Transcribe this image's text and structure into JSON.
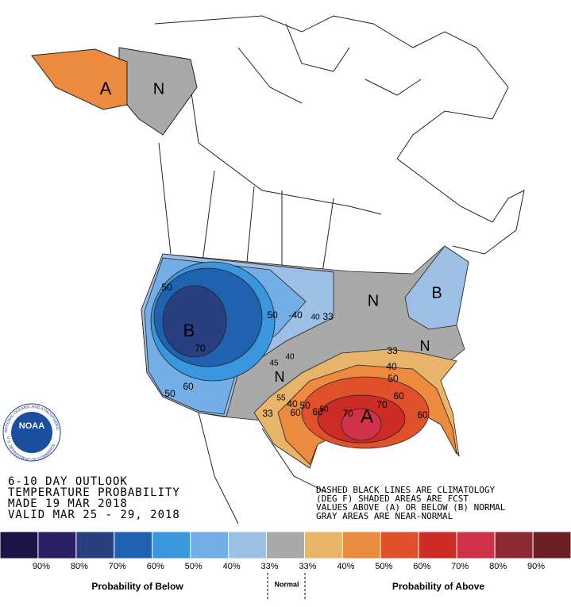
{
  "outlook": {
    "lines": [
      "6-10 DAY OUTLOOK",
      "TEMPERATURE PROBABILITY",
      "MADE  19 MAR 2018",
      "VALID  MAR 25 - 29, 2018"
    ],
    "notes": [
      "DASHED BLACK LINES ARE CLIMATOLOGY",
      "(DEG F) SHADED AREAS ARE FCST",
      "VALUES ABOVE (A) OR BELOW (B) NORMAL",
      "GRAY AREAS ARE NEAR-NORMAL"
    ]
  },
  "logo": {
    "name": "NOAA",
    "ring_top": "NATIONAL OCEANIC AND ATMOSPHERIC ADMINISTRATION",
    "ring_bottom": "U.S. DEPARTMENT OF COMMERCE"
  },
  "map_labels": [
    "A",
    "N",
    "B",
    "N",
    "B",
    "N",
    "N",
    "A",
    "50",
    "70",
    "60",
    "50",
    "50",
    "-40",
    "40",
    "33",
    "33",
    "40",
    "50",
    "60",
    "33",
    "40",
    "50",
    "60",
    "70",
    "70",
    "60",
    "45",
    "55",
    "40",
    "50",
    "60"
  ],
  "legend": {
    "swatches": [
      "#1c1446",
      "#2b1f66",
      "#2a3f7f",
      "#1f62b0",
      "#3a96dd",
      "#74aee6",
      "#9dbfe6",
      "#a9a9a9",
      "#e8b46a",
      "#ec8a40",
      "#e0502a",
      "#cc2b26",
      "#d0324a",
      "#8c2a33",
      "#6b1f24"
    ],
    "labels": [
      "90%",
      "80%",
      "70%",
      "60%",
      "50%",
      "40%",
      "33%",
      "33%",
      "40%",
      "50%",
      "60%",
      "70%",
      "80%",
      "90%"
    ],
    "below": "Probability of Below",
    "normal": "Normal",
    "above": "Probability of Above"
  }
}
